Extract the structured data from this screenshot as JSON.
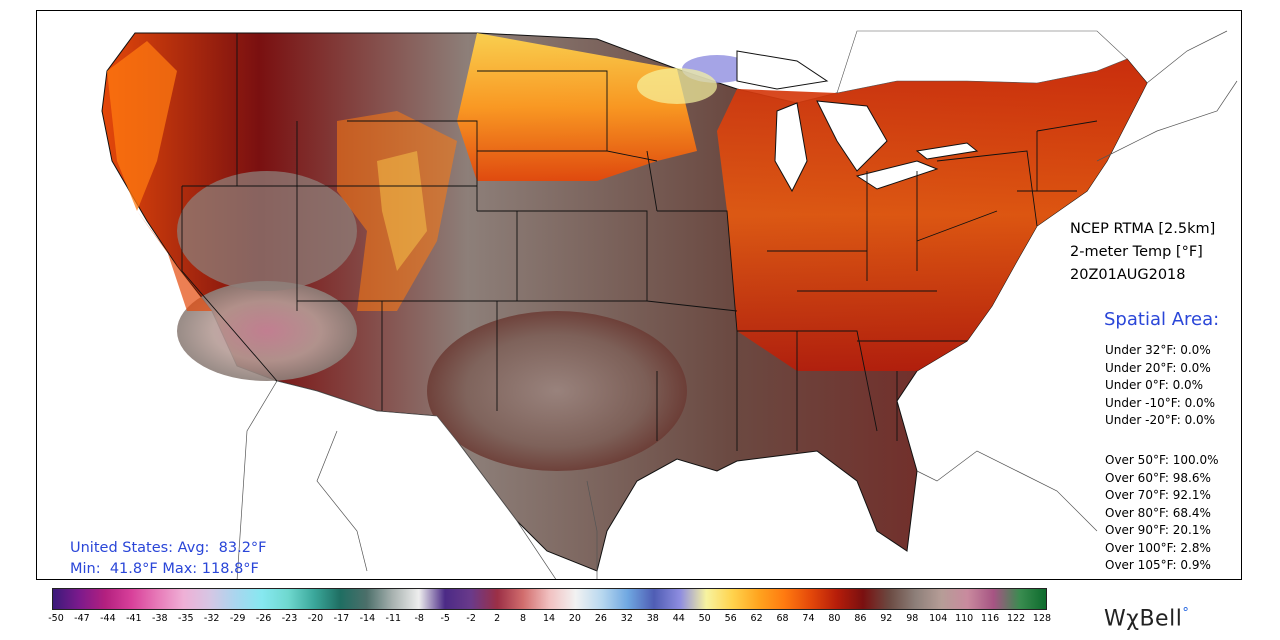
{
  "product": {
    "model": "NCEP RTMA [2.5km]",
    "variable": "2-meter Temp [°F]",
    "valid_time": "20Z01AUG2018"
  },
  "spatial": {
    "title": "Spatial Area:",
    "under": [
      "Under 32°F: 0.0%",
      "Under 20°F: 0.0%",
      "Under 0°F: 0.0%",
      "Under -10°F: 0.0%",
      "Under -20°F: 0.0%"
    ],
    "over": [
      "Over 50°F: 100.0%",
      "Over 60°F: 98.6%",
      "Over 70°F: 92.1%",
      "Over 80°F: 68.4%",
      "Over 90°F: 20.1%",
      "Over 100°F: 2.8%",
      "Over 105°F: 0.9%"
    ]
  },
  "stats": {
    "line1": "United States: Avg:  83.2°F",
    "line2": "Min:  41.8°F Max: 118.8°F"
  },
  "colorbar": {
    "labels": [
      "-50",
      "-47",
      "-44",
      "-41",
      "-38",
      "-35",
      "-32",
      "-29",
      "-26",
      "-23",
      "-20",
      "-17",
      "-14",
      "-11",
      "-8",
      "-5",
      "-2",
      "2",
      "8",
      "14",
      "20",
      "26",
      "32",
      "38",
      "44",
      "50",
      "56",
      "62",
      "68",
      "74",
      "80",
      "86",
      "92",
      "98",
      "104",
      "110",
      "116",
      "122",
      "128"
    ],
    "stops": [
      "#3b1a7a",
      "#7b1a8c",
      "#b3207f",
      "#d8409a",
      "#e77ab8",
      "#efb0d6",
      "#d6c6e4",
      "#a9d6ef",
      "#86e8f0",
      "#6fd8cf",
      "#3aa79a",
      "#1f6e62",
      "#4c6f6a",
      "#a8b2b0",
      "#eeeeee",
      "#4b2a86",
      "#6a3a8a",
      "#9b2f46",
      "#d26e6e",
      "#f1c1c1",
      "#f2f2f2",
      "#b8d8ef",
      "#6fa7e1",
      "#4f5db4",
      "#8e8de0",
      "#f7f3a0",
      "#ffd34d",
      "#ffa41f",
      "#ff7a10",
      "#e4480a",
      "#b61d0a",
      "#7a1010",
      "#6b4a42",
      "#8d7f79",
      "#b69d97",
      "#c98a9e",
      "#a65483",
      "#3a8c50",
      "#0d6b2d"
    ]
  },
  "logo": {
    "text": "WχBell",
    "mark": "°"
  },
  "palette": {
    "accent": "#2a46d8",
    "hot": "#7a1010",
    "warm": "#e4480a",
    "mild": "#ffa41f"
  }
}
